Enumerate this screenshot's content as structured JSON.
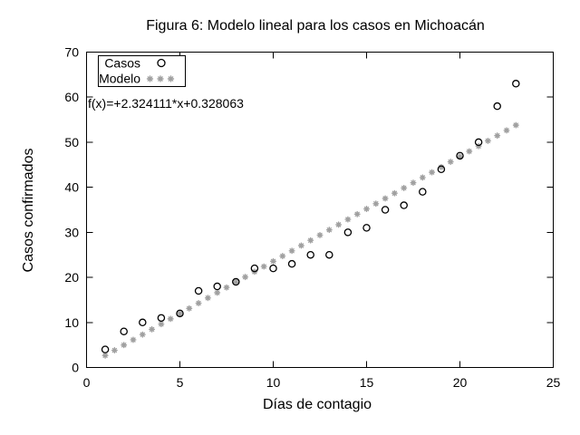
{
  "chart_data": {
    "type": "scatter",
    "title": "Figura 6: Modelo lineal para los casos en Michoacán",
    "xlabel": "Días de contagio",
    "ylabel": "Casos confirmados",
    "xlim": [
      0,
      25
    ],
    "ylim": [
      0,
      70
    ],
    "xticks": [
      0,
      5,
      10,
      15,
      20,
      25
    ],
    "yticks": [
      0,
      10,
      20,
      30,
      40,
      50,
      60,
      70
    ],
    "grid": false,
    "legend_position": "top-left",
    "annotation": "f(x)=+2.324111*x+0.328063",
    "colors": {
      "casos": "#000000",
      "modelo": "#a0a0a0",
      "frame": "#000000",
      "background": "#ffffff"
    },
    "series": [
      {
        "name": "Casos",
        "marker": "open-circle",
        "color": "#000000",
        "x": [
          1,
          2,
          3,
          4,
          5,
          6,
          7,
          8,
          9,
          10,
          11,
          12,
          13,
          14,
          15,
          16,
          17,
          18,
          19,
          20,
          21,
          22,
          23
        ],
        "y": [
          4,
          8,
          10,
          11,
          12,
          17,
          18,
          19,
          22,
          22,
          23,
          25,
          25,
          30,
          31,
          35,
          36,
          39,
          44,
          47,
          50,
          58,
          63
        ]
      },
      {
        "name": "Modelo",
        "marker": "asterisk",
        "color": "#a0a0a0",
        "model": {
          "slope": 2.324111,
          "intercept": 0.328063,
          "x_start": 1,
          "x_end": 23,
          "x_step": 0.5
        }
      }
    ]
  }
}
